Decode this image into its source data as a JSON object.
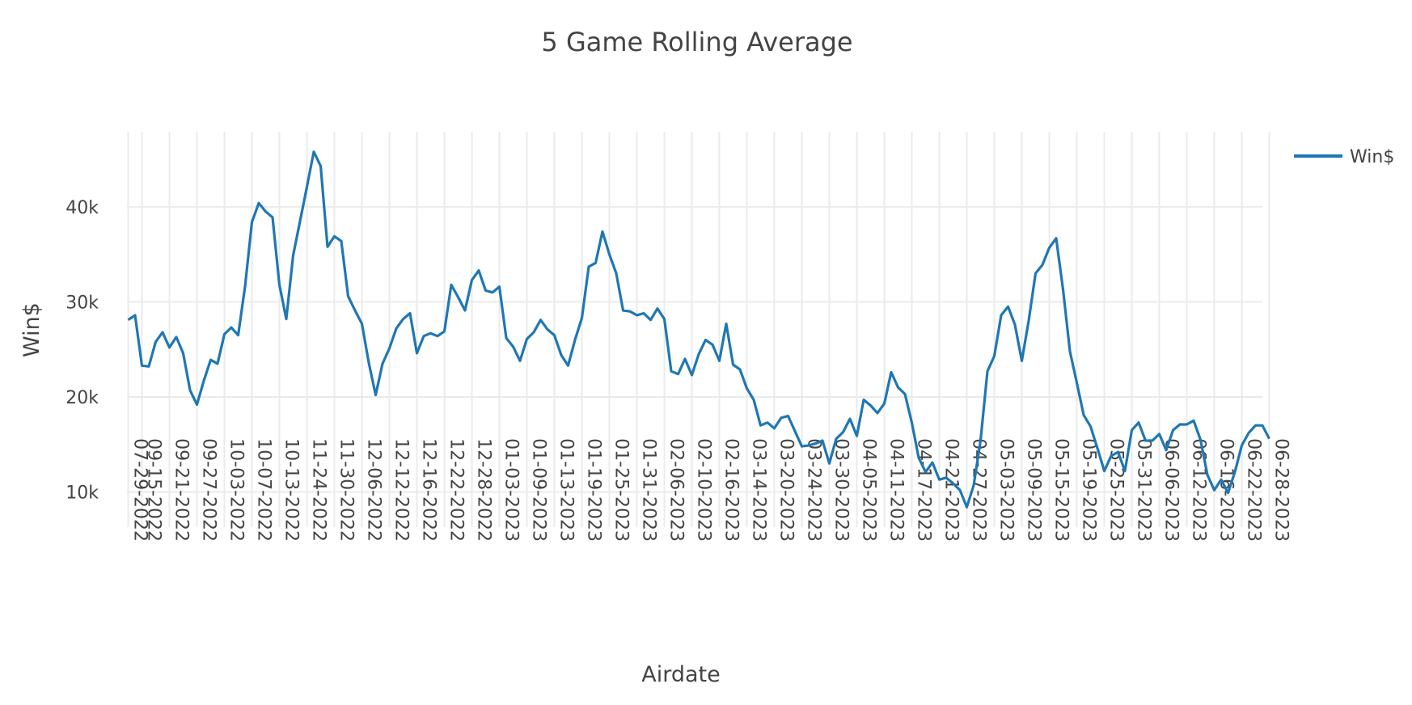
{
  "chart_data": {
    "type": "line",
    "title": "5 Game Rolling Average",
    "xlabel": "Airdate",
    "ylabel": "Win$",
    "ylim": [
      6300,
      47900
    ],
    "yticks": [
      10000,
      20000,
      30000,
      40000
    ],
    "ytick_labels": [
      "10k",
      "20k",
      "30k",
      "40k"
    ],
    "xtick_labels": [
      "07-29-2022",
      "09-15-2022",
      "09-21-2022",
      "09-27-2022",
      "10-03-2022",
      "10-07-2022",
      "10-13-2022",
      "11-24-2022",
      "11-30-2022",
      "12-06-2022",
      "12-12-2022",
      "12-16-2022",
      "12-22-2022",
      "12-28-2022",
      "01-03-2023",
      "01-09-2023",
      "01-13-2023",
      "01-19-2023",
      "01-25-2023",
      "01-31-2023",
      "02-06-2023",
      "02-10-2023",
      "02-16-2023",
      "03-14-2023",
      "03-20-2023",
      "03-24-2023",
      "03-30-2023",
      "04-05-2023",
      "04-11-2023",
      "04-17-2023",
      "04-21-2023",
      "04-27-2023",
      "05-03-2023",
      "05-09-2023",
      "05-15-2023",
      "05-19-2023",
      "05-25-2023",
      "05-31-2023",
      "06-06-2023",
      "06-12-2023",
      "06-16-2023",
      "06-22-2023",
      "06-28-2023"
    ],
    "grid": true,
    "legend_position": "top-right",
    "series": [
      {
        "name": "Win$",
        "color": "#1f77b4",
        "values": [
          28100,
          28600,
          23300,
          23200,
          25800,
          26800,
          25200,
          26300,
          24600,
          20700,
          19200,
          21700,
          23900,
          23500,
          26600,
          27300,
          26500,
          31600,
          38400,
          40400,
          39500,
          38900,
          31800,
          28200,
          34900,
          38500,
          42100,
          45800,
          44300,
          35800,
          36900,
          36400,
          30600,
          29100,
          27700,
          23600,
          20200,
          23500,
          25100,
          27200,
          28200,
          28800,
          24600,
          26400,
          26700,
          26400,
          26900,
          31800,
          30500,
          29100,
          32300,
          33300,
          31200,
          31000,
          31600,
          26200,
          25300,
          23800,
          26100,
          26800,
          28100,
          27100,
          26500,
          24400,
          23300,
          26000,
          28300,
          33700,
          34100,
          37400,
          35000,
          33000,
          29100,
          29000,
          28600,
          28800,
          28100,
          29300,
          28200,
          22700,
          22400,
          24000,
          22300,
          24500,
          26000,
          25500,
          23800,
          27700,
          23400,
          22900,
          20900,
          19700,
          17000,
          17300,
          16700,
          17800,
          18000,
          16400,
          14800,
          14900,
          15100,
          15400,
          13000,
          15600,
          16300,
          17700,
          15900,
          19700,
          19100,
          18300,
          19300,
          22600,
          21000,
          20300,
          17300,
          13600,
          12100,
          13100,
          11300,
          11500,
          10900,
          10200,
          8400,
          10700,
          15400,
          22700,
          24300,
          28600,
          29500,
          27600,
          23800,
          28000,
          33000,
          33900,
          35700,
          36700,
          31300,
          24800,
          21500,
          18100,
          16900,
          14600,
          12200,
          13800,
          14200,
          12200,
          16500,
          17300,
          15400,
          15400,
          16100,
          14400,
          16500,
          17100,
          17100,
          17500,
          15500,
          11800,
          10200,
          11300,
          9900,
          12100,
          14900,
          16200,
          17000,
          17000,
          15600
        ]
      }
    ]
  }
}
